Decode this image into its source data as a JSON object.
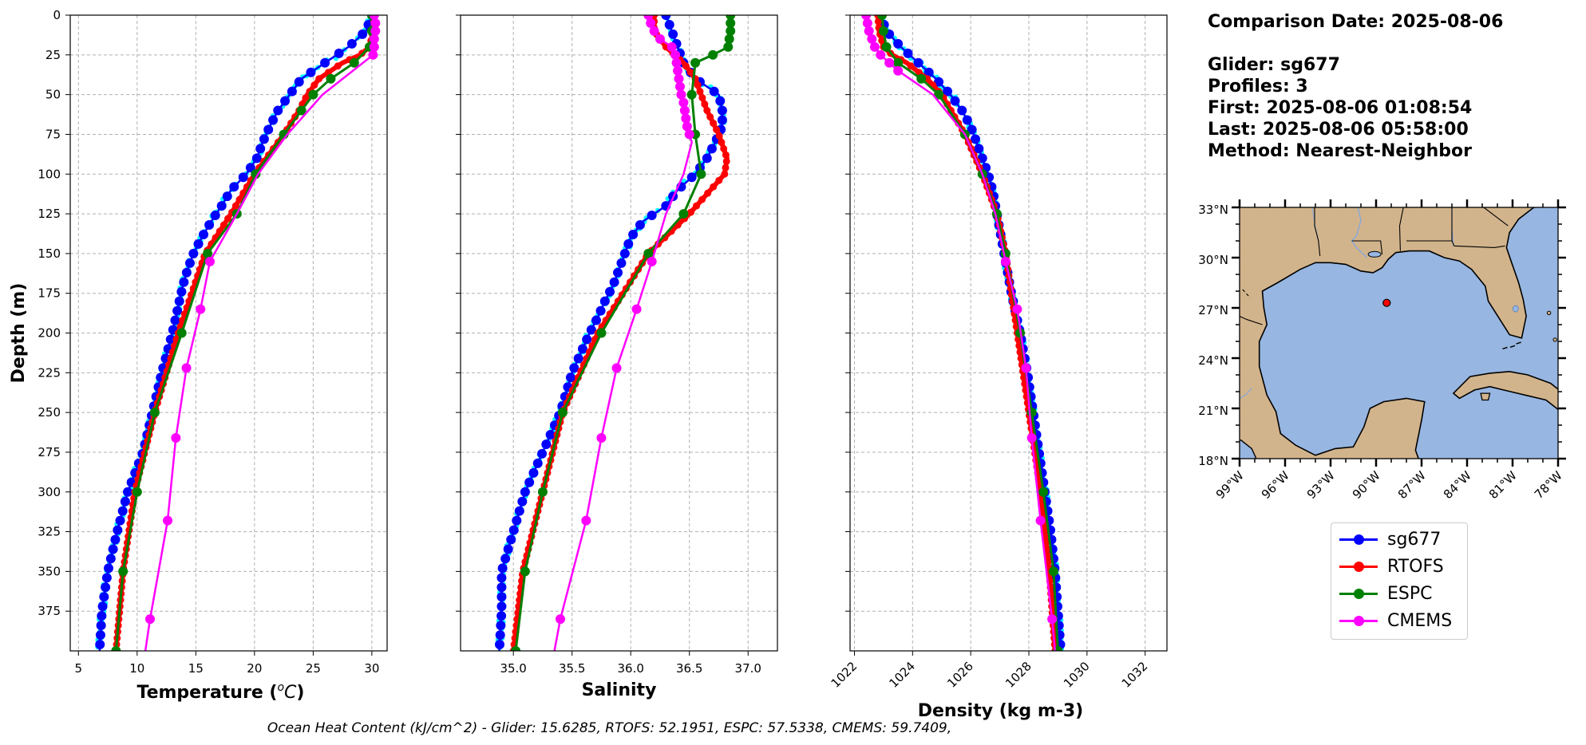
{
  "chart_data": [
    {
      "type": "line",
      "xlabel": "Temperature (°C)",
      "xlabel_main": "Temperature (",
      "xlabel_unit": "o",
      "xlabel_unit2": "C",
      "xlabel_end": ")",
      "ylabel": "Depth (m)",
      "xlim": [
        4.3,
        31.3
      ],
      "ylim": [
        400,
        0
      ],
      "xticks": [
        5,
        10,
        15,
        20,
        25,
        30
      ],
      "yticks": [
        0,
        25,
        50,
        75,
        100,
        125,
        150,
        175,
        200,
        225,
        250,
        275,
        300,
        325,
        350,
        375
      ],
      "grid": true,
      "series": [
        {
          "name": "sg677",
          "color": "#0000ff",
          "depth": [
            0,
            10,
            20,
            30,
            40,
            50,
            60,
            70,
            80,
            90,
            100,
            110,
            120,
            130,
            140,
            150,
            160,
            170,
            180,
            190,
            200,
            225,
            250,
            275,
            300,
            325,
            350,
            375,
            400
          ],
          "values": [
            30.0,
            29.5,
            28.0,
            26.0,
            24.0,
            23.0,
            22.0,
            21.3,
            20.7,
            20.2,
            19.3,
            18.0,
            17.2,
            16.3,
            15.5,
            14.8,
            14.3,
            13.9,
            13.6,
            13.3,
            13.0,
            12.1,
            11.3,
            10.5,
            9.2,
            8.3,
            7.5,
            7.0,
            6.8
          ]
        },
        {
          "name": "RTOFS",
          "color": "#ff0000",
          "depth": [
            0,
            10,
            20,
            25,
            30,
            40,
            50,
            60,
            75,
            100,
            125,
            150,
            200,
            250,
            300,
            350,
            400
          ],
          "values": [
            30.2,
            30.1,
            29.8,
            29.0,
            27.5,
            25.5,
            24.5,
            23.8,
            22.5,
            20.0,
            18.0,
            15.8,
            13.5,
            11.5,
            9.8,
            8.8,
            8.2
          ]
        },
        {
          "name": "ESPC",
          "color": "#008000",
          "depth": [
            0,
            10,
            20,
            30,
            40,
            50,
            60,
            75,
            100,
            125,
            150,
            200,
            250,
            300,
            350,
            400
          ],
          "values": [
            30.0,
            30.0,
            29.8,
            28.5,
            26.5,
            25.0,
            24.0,
            22.5,
            20.1,
            18.5,
            16.0,
            13.8,
            11.5,
            10.0,
            8.8,
            8.2
          ]
        },
        {
          "name": "CMEMS",
          "color": "#ff00ff",
          "depth": [
            0,
            5,
            10,
            15,
            20,
            25,
            50,
            75,
            100,
            125,
            155,
            185,
            222,
            266,
            318,
            380,
            400
          ],
          "values": [
            30.2,
            30.3,
            30.3,
            30.2,
            30.2,
            30.1,
            25.8,
            22.8,
            20.3,
            18.5,
            16.2,
            15.4,
            14.2,
            13.3,
            12.6,
            11.1,
            10.7
          ],
          "markers": [
            0,
            5,
            10,
            15,
            20,
            25,
            155,
            185,
            222,
            266,
            318,
            380
          ]
        }
      ]
    },
    {
      "type": "line",
      "xlabel": "Salinity",
      "xlim": [
        34.55,
        37.25
      ],
      "ylim": [
        400,
        0
      ],
      "xticks": [
        "35.0",
        "35.5",
        "36.0",
        "36.5",
        "37.0"
      ],
      "xtick_values": [
        35.0,
        35.5,
        36.0,
        36.5,
        37.0
      ],
      "grid": true,
      "series": [
        {
          "name": "sg677",
          "color": "#0000ff",
          "depth": [
            0,
            10,
            20,
            30,
            40,
            50,
            60,
            70,
            80,
            90,
            100,
            110,
            120,
            130,
            140,
            150,
            160,
            170,
            180,
            190,
            200,
            225,
            250,
            275,
            300,
            325,
            350,
            375,
            400
          ],
          "values": [
            36.3,
            36.35,
            36.4,
            36.45,
            36.55,
            36.75,
            36.78,
            36.78,
            36.72,
            36.65,
            36.55,
            36.4,
            36.3,
            36.1,
            36.0,
            35.95,
            35.9,
            35.85,
            35.78,
            35.72,
            35.65,
            35.5,
            35.4,
            35.25,
            35.1,
            35.0,
            34.9,
            34.9,
            34.88
          ]
        },
        {
          "name": "RTOFS",
          "color": "#ff0000",
          "depth": [
            0,
            10,
            20,
            30,
            40,
            50,
            60,
            75,
            90,
            100,
            125,
            150,
            200,
            250,
            300,
            350,
            400
          ],
          "values": [
            36.2,
            36.2,
            36.3,
            36.45,
            36.55,
            36.6,
            36.65,
            36.75,
            36.82,
            36.8,
            36.5,
            36.15,
            35.72,
            35.42,
            35.25,
            35.08,
            35.0
          ]
        },
        {
          "name": "ESPC",
          "color": "#008000",
          "depth": [
            0,
            5,
            10,
            15,
            20,
            25,
            30,
            50,
            75,
            100,
            125,
            150,
            200,
            250,
            300,
            350,
            400
          ],
          "values": [
            36.85,
            36.85,
            36.85,
            36.84,
            36.83,
            36.7,
            36.55,
            36.52,
            36.55,
            36.6,
            36.45,
            36.15,
            35.75,
            35.42,
            35.25,
            35.1,
            35.02
          ]
        },
        {
          "name": "CMEMS",
          "color": "#ff00ff",
          "depth": [
            0,
            5,
            10,
            15,
            20,
            25,
            30,
            35,
            40,
            45,
            50,
            55,
            60,
            65,
            70,
            75,
            80,
            100,
            125,
            155,
            185,
            222,
            266,
            318,
            380,
            400
          ],
          "values": [
            36.15,
            36.17,
            36.2,
            36.25,
            36.35,
            36.38,
            36.39,
            36.4,
            36.41,
            36.42,
            36.43,
            36.45,
            36.46,
            36.47,
            36.48,
            36.5,
            36.52,
            36.45,
            36.3,
            36.18,
            36.05,
            35.88,
            35.75,
            35.62,
            35.4,
            35.35
          ],
          "markers": [
            0,
            5,
            10,
            15,
            20,
            25,
            30,
            35,
            40,
            45,
            50,
            55,
            60,
            65,
            70,
            75,
            155,
            185,
            222,
            266,
            318,
            380
          ]
        }
      ]
    },
    {
      "type": "line",
      "xlabel": "Density (kg m-3)",
      "xlim": [
        1021.85,
        1032.75
      ],
      "ylim": [
        400,
        0
      ],
      "xticks": [
        "1022",
        "1024",
        "1026",
        "1028",
        "1030",
        "1032"
      ],
      "xtick_values": [
        1022,
        1024,
        1026,
        1028,
        1030,
        1032
      ],
      "grid": true,
      "series": [
        {
          "name": "sg677",
          "color": "#0000ff",
          "depth": [
            0,
            10,
            20,
            30,
            40,
            50,
            60,
            70,
            80,
            90,
            100,
            110,
            120,
            130,
            140,
            150,
            175,
            200,
            225,
            250,
            275,
            300,
            325,
            350,
            375,
            400
          ],
          "values": [
            1022.9,
            1023.1,
            1023.6,
            1024.2,
            1024.8,
            1025.3,
            1025.7,
            1026.0,
            1026.2,
            1026.4,
            1026.6,
            1026.75,
            1026.85,
            1026.95,
            1027.05,
            1027.15,
            1027.4,
            1027.7,
            1027.95,
            1028.15,
            1028.35,
            1028.55,
            1028.75,
            1028.9,
            1029.0,
            1029.1
          ]
        },
        {
          "name": "RTOFS",
          "color": "#ff0000",
          "depth": [
            0,
            10,
            20,
            25,
            30,
            40,
            50,
            75,
            100,
            125,
            150,
            200,
            250,
            300,
            350,
            400
          ],
          "values": [
            1022.8,
            1022.85,
            1023.0,
            1023.3,
            1023.8,
            1024.5,
            1025.0,
            1025.8,
            1026.4,
            1026.9,
            1027.2,
            1027.6,
            1028.0,
            1028.4,
            1028.7,
            1028.9
          ]
        },
        {
          "name": "ESPC",
          "color": "#008000",
          "depth": [
            0,
            10,
            20,
            30,
            40,
            50,
            75,
            100,
            125,
            150,
            200,
            250,
            300,
            350,
            400
          ],
          "values": [
            1022.95,
            1023.0,
            1023.1,
            1023.5,
            1024.3,
            1024.9,
            1025.8,
            1026.4,
            1026.9,
            1027.2,
            1027.7,
            1028.1,
            1028.5,
            1028.85,
            1029.0
          ]
        },
        {
          "name": "CMEMS",
          "color": "#ff00ff",
          "depth": [
            0,
            5,
            10,
            15,
            20,
            25,
            30,
            35,
            50,
            75,
            100,
            125,
            155,
            185,
            222,
            266,
            318,
            380,
            400
          ],
          "values": [
            1022.4,
            1022.45,
            1022.5,
            1022.6,
            1022.7,
            1022.9,
            1023.2,
            1023.5,
            1024.7,
            1025.8,
            1026.4,
            1026.85,
            1027.2,
            1027.6,
            1027.9,
            1028.1,
            1028.4,
            1028.8,
            1028.9
          ],
          "markers": [
            0,
            5,
            10,
            15,
            20,
            25,
            30,
            35,
            155,
            185,
            222,
            266,
            318,
            380
          ]
        }
      ]
    },
    {
      "type": "map",
      "region": "Gulf of Mexico",
      "lon_range": [
        -99,
        -78
      ],
      "lat_range": [
        18,
        33
      ],
      "lat_ticks": [
        "33°N",
        "30°N",
        "27°N",
        "24°N",
        "21°N",
        "18°N"
      ],
      "lat_tick_values": [
        33,
        30,
        27,
        24,
        21,
        18
      ],
      "lon_ticks": [
        "99°W",
        "96°W",
        "93°W",
        "90°W",
        "87°W",
        "84°W",
        "81°W",
        "78°W"
      ],
      "lon_tick_values": [
        -99,
        -96,
        -93,
        -90,
        -87,
        -84,
        -81,
        -78
      ],
      "marker": {
        "lon": -89.3,
        "lat": 27.3,
        "color": "#ff0000"
      },
      "land_color": "#d2b48c",
      "ocean_color": "#97b6e1"
    }
  ],
  "info": {
    "comparison_date": "Comparison Date: 2025-08-06",
    "glider": "Glider: sg677",
    "profiles": "Profiles: 3",
    "first": "First: 2025-08-06 01:08:54",
    "last": "Last: 2025-08-06 05:58:00",
    "method": "Method: Nearest-Neighbor"
  },
  "legend": [
    "sg677",
    "RTOFS",
    "ESPC",
    "CMEMS"
  ],
  "colors": {
    "sg677": "#0000ff",
    "RTOFS": "#ff0000",
    "ESPC": "#008000",
    "CMEMS": "#ff00ff",
    "cyan": "#00ffff"
  },
  "footer": "Ocean Heat Content (kJ/cm^2) - Glider: 15.6285,  RTOFS: 52.1951,  ESPC: 57.5338,  CMEMS: 59.7409,"
}
